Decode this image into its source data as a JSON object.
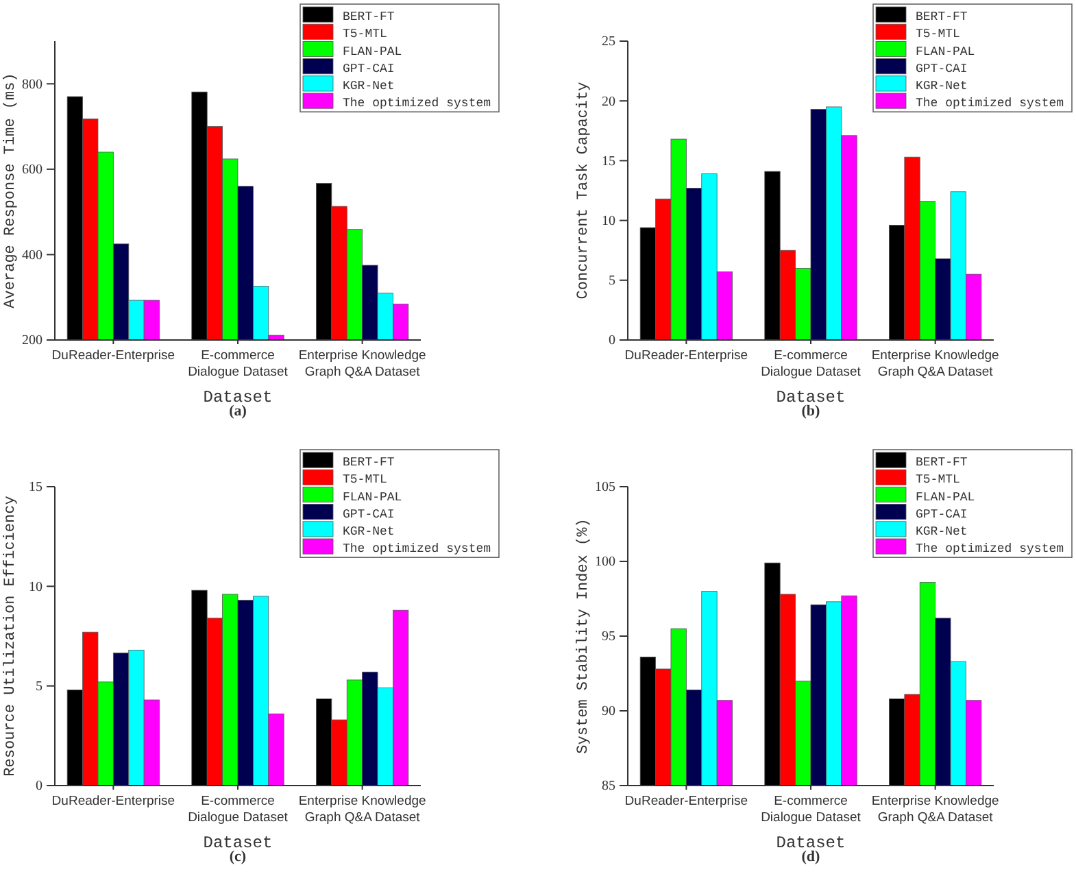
{
  "chart_data": [
    {
      "type": "bar",
      "xlabel": "Dataset",
      "ylabel": "Average Response Time (ms)",
      "annotations": [
        "(a)"
      ],
      "categories": [
        "DuReader-Enterprise",
        "E-commerce Dialogue Dataset",
        "Enterprise Knowledge Graph Q&A Dataset"
      ],
      "ylim": [
        200,
        900
      ],
      "yticks": [
        200,
        400,
        600,
        800
      ],
      "legend": "top right",
      "series": [
        {
          "name": "BERT-FT",
          "color": "#000000",
          "values": [
            770,
            781,
            567
          ]
        },
        {
          "name": "T5-MTL",
          "color": "#ff0000",
          "values": [
            718,
            700,
            513
          ]
        },
        {
          "name": "FLAN-PAL",
          "color": "#00ff00",
          "values": [
            640,
            624,
            459
          ]
        },
        {
          "name": "GPT-CAI",
          "color": "#000050",
          "values": [
            425,
            560,
            375
          ]
        },
        {
          "name": "KGR-Net",
          "color": "#00ffff",
          "values": [
            293,
            326,
            310
          ]
        },
        {
          "name": "The optimized system",
          "color": "#ff00ff",
          "values": [
            293,
            211,
            284
          ]
        }
      ]
    },
    {
      "type": "bar",
      "xlabel": "Dataset",
      "ylabel": "Concurrent Task Capacity",
      "annotations": [
        "(b)"
      ],
      "categories": [
        "DuReader-Enterprise",
        "E-commerce Dialogue Dataset",
        "Enterprise Knowledge Graph Q&A Dataset"
      ],
      "ylim": [
        0,
        25
      ],
      "yticks": [
        0,
        5,
        10,
        15,
        20,
        25
      ],
      "legend": "top right",
      "series": [
        {
          "name": "BERT-FT",
          "color": "#000000",
          "values": [
            9.4,
            14.1,
            9.6
          ]
        },
        {
          "name": "T5-MTL",
          "color": "#ff0000",
          "values": [
            11.8,
            7.5,
            15.3
          ]
        },
        {
          "name": "FLAN-PAL",
          "color": "#00ff00",
          "values": [
            16.8,
            6.0,
            11.6
          ]
        },
        {
          "name": "GPT-CAI",
          "color": "#000050",
          "values": [
            12.7,
            19.3,
            6.8
          ]
        },
        {
          "name": "KGR-Net",
          "color": "#00ffff",
          "values": [
            13.9,
            19.5,
            12.4
          ]
        },
        {
          "name": "The optimized system",
          "color": "#ff00ff",
          "values": [
            5.7,
            17.1,
            5.5
          ]
        }
      ]
    },
    {
      "type": "bar",
      "xlabel": "Dataset",
      "ylabel": "Resource Utilization Efficiency",
      "annotations": [
        "(c)"
      ],
      "categories": [
        "DuReader-Enterprise",
        "E-commerce Dialogue Dataset",
        "Enterprise Knowledge Graph Q&A Dataset"
      ],
      "ylim": [
        0,
        15
      ],
      "yticks": [
        0,
        5,
        10,
        15
      ],
      "legend": "top right",
      "series": [
        {
          "name": "BERT-FT",
          "color": "#000000",
          "values": [
            4.8,
            9.8,
            4.35
          ]
        },
        {
          "name": "T5-MTL",
          "color": "#ff0000",
          "values": [
            7.7,
            8.4,
            3.3
          ]
        },
        {
          "name": "FLAN-PAL",
          "color": "#00ff00",
          "values": [
            5.2,
            9.6,
            5.3
          ]
        },
        {
          "name": "GPT-CAI",
          "color": "#000050",
          "values": [
            6.65,
            9.3,
            5.7
          ]
        },
        {
          "name": "KGR-Net",
          "color": "#00ffff",
          "values": [
            6.8,
            9.5,
            4.9
          ]
        },
        {
          "name": "The optimized system",
          "color": "#ff00ff",
          "values": [
            4.3,
            3.6,
            8.8
          ]
        }
      ]
    },
    {
      "type": "bar",
      "xlabel": "Dataset",
      "ylabel": "System Stability Index (%)",
      "annotations": [
        "(d)"
      ],
      "categories": [
        "DuReader-Enterprise",
        "E-commerce Dialogue Dataset",
        "Enterprise Knowledge Graph Q&A Dataset"
      ],
      "ylim": [
        85,
        105
      ],
      "yticks": [
        85,
        90,
        95,
        100,
        105
      ],
      "legend": "top right",
      "series": [
        {
          "name": "BERT-FT",
          "color": "#000000",
          "values": [
            93.6,
            99.9,
            90.8
          ]
        },
        {
          "name": "T5-MTL",
          "color": "#ff0000",
          "values": [
            92.8,
            97.8,
            91.1
          ]
        },
        {
          "name": "FLAN-PAL",
          "color": "#00ff00",
          "values": [
            95.5,
            92.0,
            98.6
          ]
        },
        {
          "name": "GPT-CAI",
          "color": "#000050",
          "values": [
            91.4,
            97.1,
            96.2
          ]
        },
        {
          "name": "KGR-Net",
          "color": "#00ffff",
          "values": [
            98.0,
            97.3,
            93.3
          ]
        },
        {
          "name": "The optimized system",
          "color": "#ff00ff",
          "values": [
            90.7,
            97.7,
            90.7
          ]
        }
      ]
    }
  ]
}
